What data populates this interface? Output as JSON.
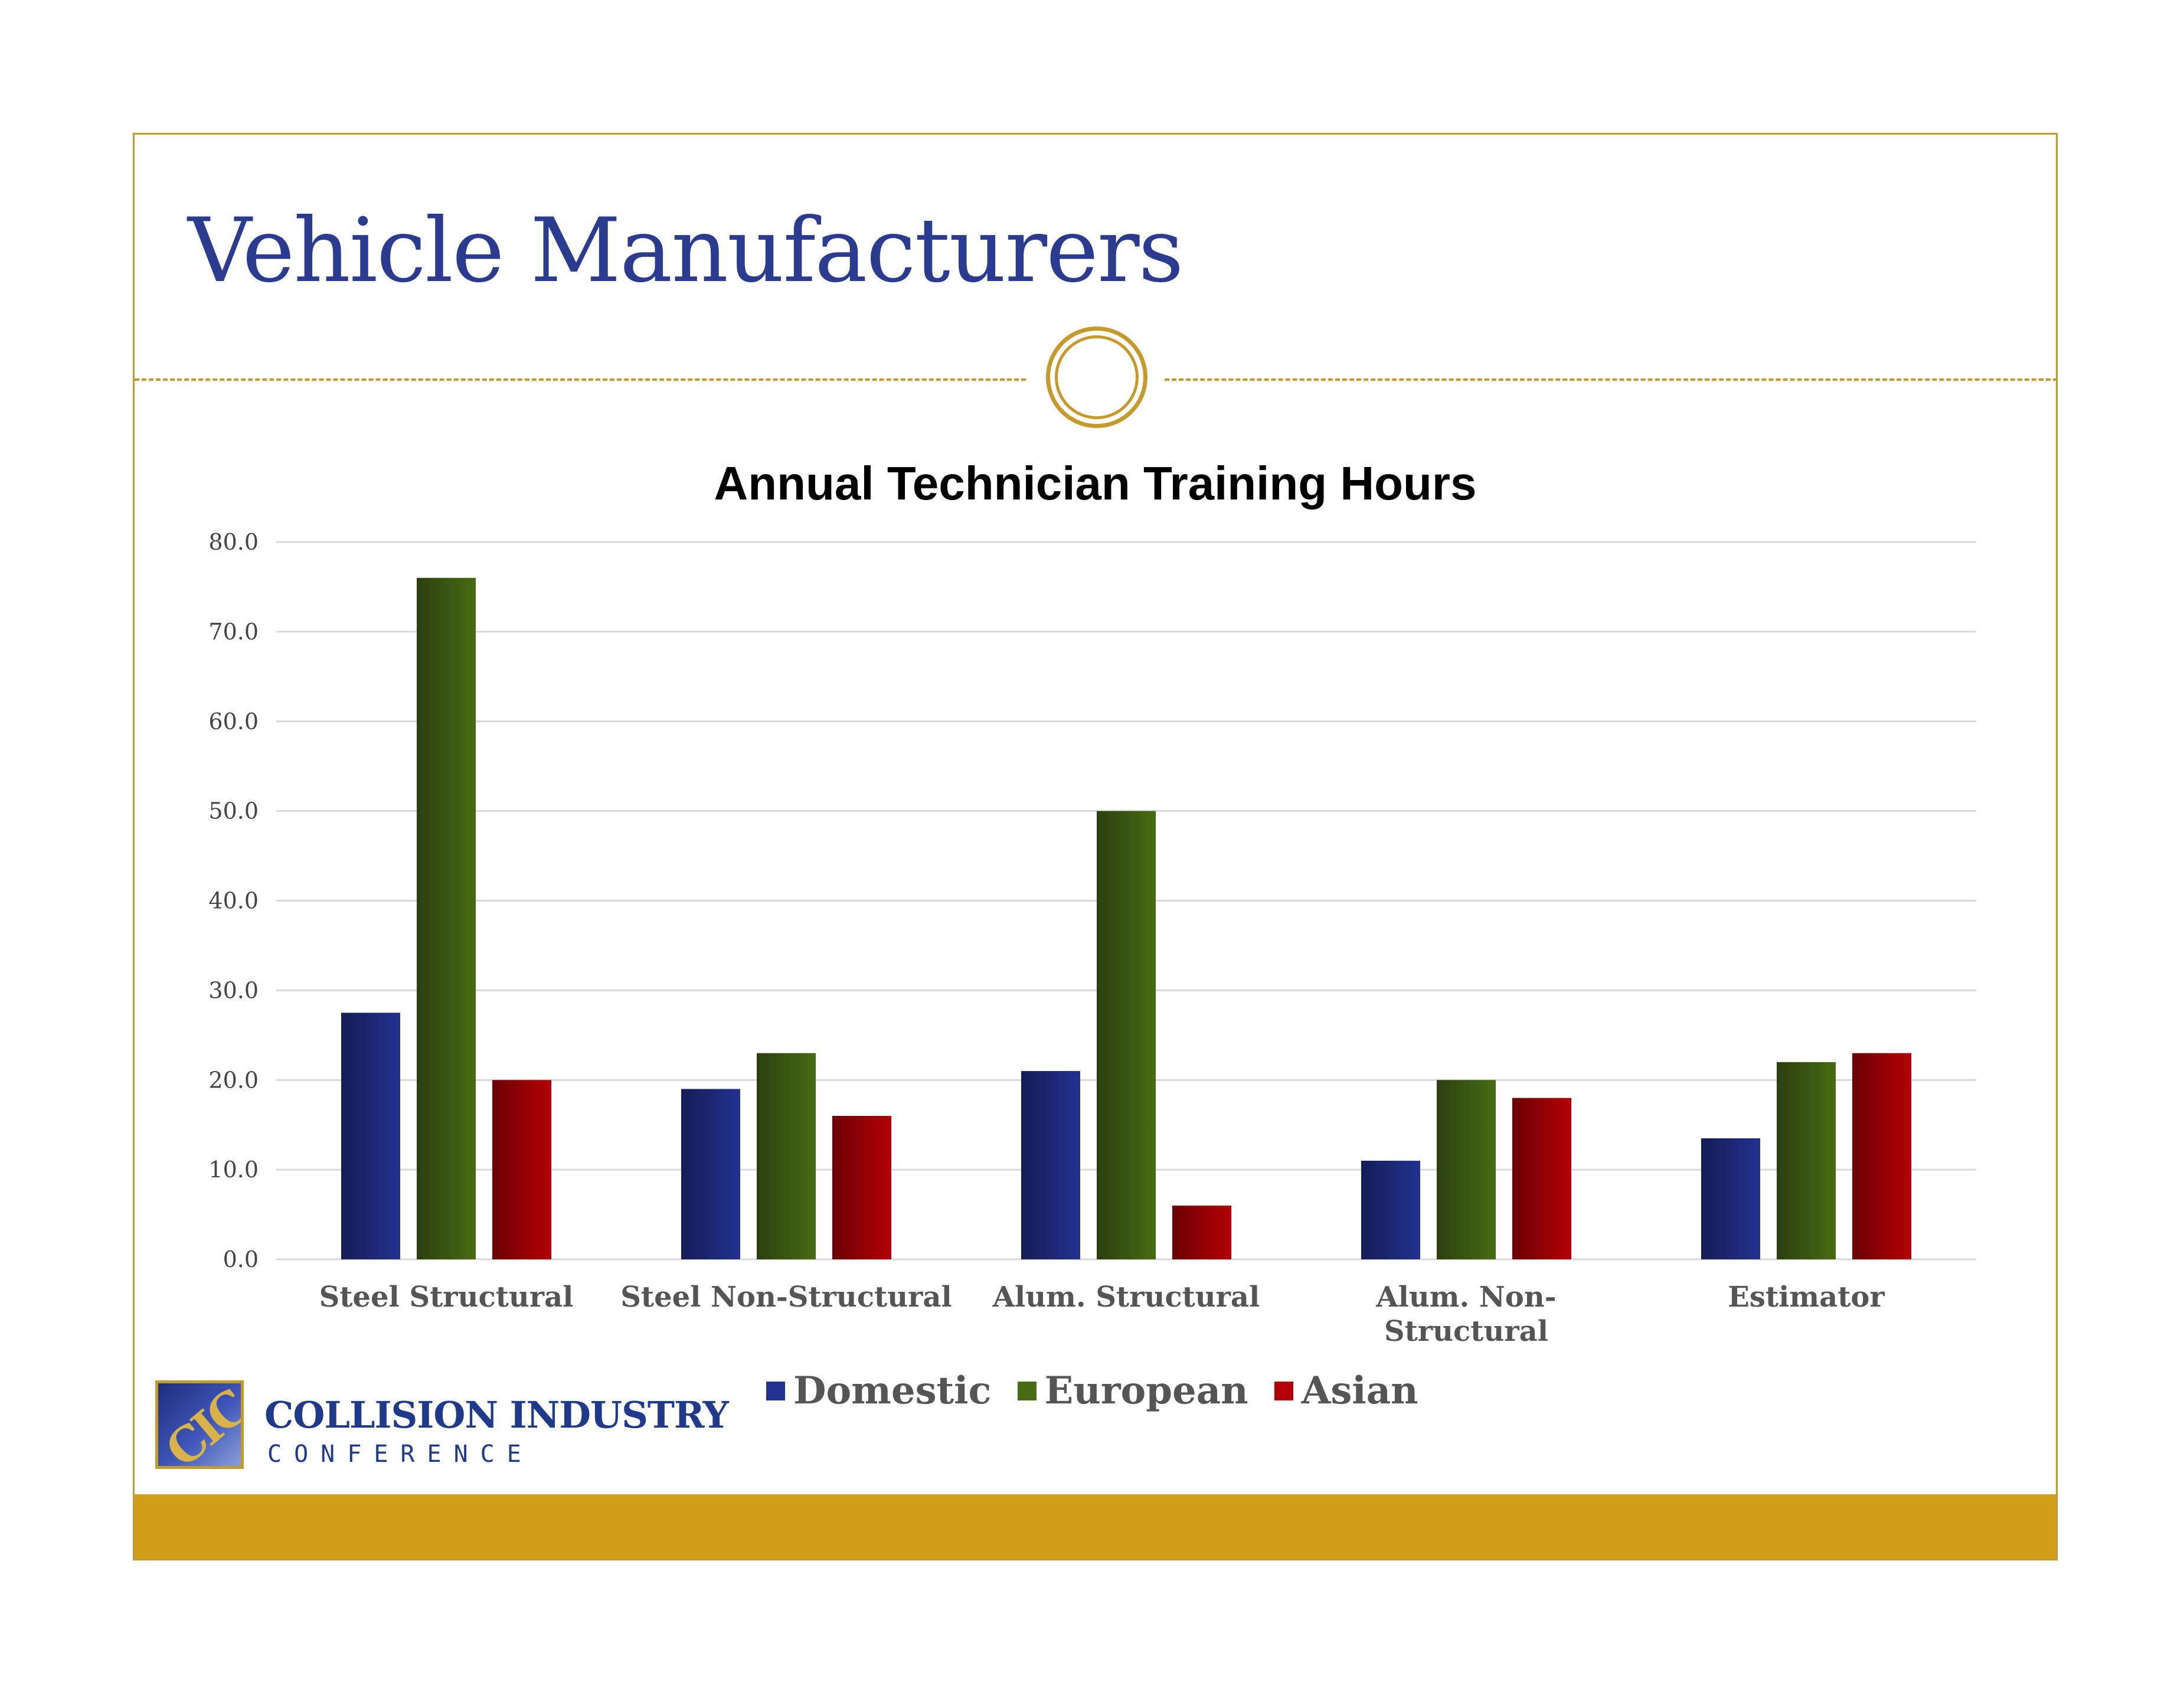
{
  "slide": {
    "title": "Vehicle Manufacturers"
  },
  "logo": {
    "mark": "CIC",
    "name": "COLLISION INDUSTRY",
    "sub": "CONFERENCE"
  },
  "colors": {
    "frame": "#c59a2b",
    "title": "#2b3c90",
    "footer_bar": "#d19e1b"
  },
  "chart_data": {
    "type": "bar",
    "title": "Annual Technician Training Hours",
    "xlabel": "",
    "ylabel": "",
    "ylim": [
      0,
      80
    ],
    "yticks": [
      "0.0",
      "10.0",
      "20.0",
      "30.0",
      "40.0",
      "50.0",
      "60.0",
      "70.0",
      "80.0"
    ],
    "grid": true,
    "legend_position": "bottom",
    "categories": [
      "Steel Structural",
      "Steel Non-Structural",
      "Alum. Structural",
      "Alum. Non-Structural",
      "Estimator"
    ],
    "category_label_lines": [
      [
        "Steel Structural"
      ],
      [
        "Steel Non-Structural"
      ],
      [
        "Alum. Structural"
      ],
      [
        "Alum. Non-",
        "Structural"
      ],
      [
        "Estimator"
      ]
    ],
    "series": [
      {
        "name": "Domestic",
        "color": "#23318f",
        "values": [
          27.5,
          19,
          21,
          11,
          13.5
        ]
      },
      {
        "name": "European",
        "color": "#476b15",
        "values": [
          76,
          23,
          50,
          20,
          22
        ]
      },
      {
        "name": "Asian",
        "color": "#b30006",
        "values": [
          20,
          16,
          6,
          18,
          23
        ]
      }
    ]
  }
}
